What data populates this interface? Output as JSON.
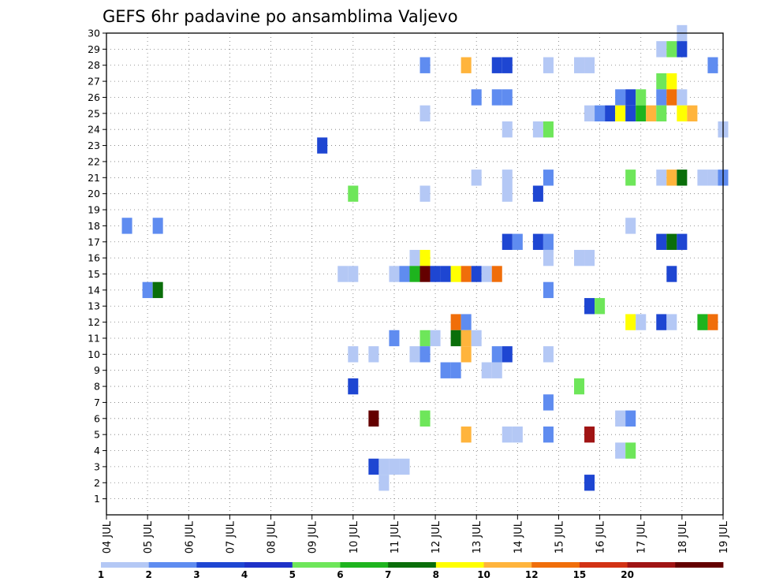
{
  "chart_data": {
    "type": "heatmap",
    "title": "GEFS 6hr padavine po ansamblima Valjevo",
    "xlabel": "",
    "ylabel": "",
    "x_tick_labels": [
      "04 JUL",
      "05 JUL",
      "06 JUL",
      "07 JUL",
      "08 JUL",
      "09 JUL",
      "10 JUL",
      "11 JUL",
      "12 JUL",
      "13 JUL",
      "14 JUL",
      "15 JUL",
      "16 JUL",
      "17 JUL",
      "18 JUL",
      "19 JUL"
    ],
    "xlim": [
      0,
      15
    ],
    "x_unit": "days after 04 JUL 00z (6-hour steps)",
    "y_tick_labels": [
      "1",
      "2",
      "3",
      "4",
      "5",
      "6",
      "7",
      "8",
      "9",
      "10",
      "11",
      "12",
      "13",
      "14",
      "15",
      "16",
      "17",
      "18",
      "19",
      "20",
      "21",
      "22",
      "23",
      "24",
      "25",
      "26",
      "27",
      "28",
      "29",
      "30"
    ],
    "ylim": [
      0,
      30
    ],
    "grid": true,
    "legend": "colorbar-bottom",
    "colorbar": {
      "tick_labels": [
        "1",
        "2",
        "3",
        "4",
        "5",
        "6",
        "7",
        "8",
        "10",
        "12",
        "15",
        "20"
      ],
      "colors": [
        "#b4c8f5",
        "#5f8cf0",
        "#1e46d2",
        "#1e32c8",
        "#6ee65a",
        "#1eb41e",
        "#0a6e0a",
        "#ffff00",
        "#ffb43c",
        "#f06e0a",
        "#d23214",
        "#a01414",
        "#640000"
      ]
    },
    "cell_days": 0.25,
    "cells": [
      [
        14.0,
        30,
        "#b4c8f5"
      ],
      [
        13.5,
        29,
        "#b4c8f5"
      ],
      [
        13.75,
        29,
        "#6ee65a"
      ],
      [
        14.0,
        29,
        "#1e46d2"
      ],
      [
        7.75,
        28,
        "#5f8cf0"
      ],
      [
        8.75,
        28,
        "#ffb43c"
      ],
      [
        9.5,
        28,
        "#1e46d2"
      ],
      [
        9.75,
        28,
        "#1e46d2"
      ],
      [
        10.75,
        28,
        "#b4c8f5"
      ],
      [
        11.5,
        28,
        "#b4c8f5"
      ],
      [
        11.75,
        28,
        "#b4c8f5"
      ],
      [
        14.75,
        28,
        "#5f8cf0"
      ],
      [
        13.5,
        27,
        "#6ee65a"
      ],
      [
        13.75,
        27,
        "#ffff00"
      ],
      [
        9.0,
        26,
        "#5f8cf0"
      ],
      [
        9.5,
        26,
        "#5f8cf0"
      ],
      [
        9.75,
        26,
        "#5f8cf0"
      ],
      [
        12.5,
        26,
        "#5f8cf0"
      ],
      [
        12.75,
        26,
        "#1e46d2"
      ],
      [
        13.0,
        26,
        "#6ee65a"
      ],
      [
        13.5,
        26,
        "#5f8cf0"
      ],
      [
        13.75,
        26,
        "#f06e0a"
      ],
      [
        14.0,
        26,
        "#b4c8f5"
      ],
      [
        7.75,
        25,
        "#b4c8f5"
      ],
      [
        11.75,
        25,
        "#b4c8f5"
      ],
      [
        12.0,
        25,
        "#5f8cf0"
      ],
      [
        12.25,
        25,
        "#1e46d2"
      ],
      [
        12.5,
        25,
        "#ffff00"
      ],
      [
        12.75,
        25,
        "#1e46d2"
      ],
      [
        13.0,
        25,
        "#1eb41e"
      ],
      [
        13.25,
        25,
        "#ffb43c"
      ],
      [
        13.5,
        25,
        "#6ee65a"
      ],
      [
        14.0,
        25,
        "#ffff00"
      ],
      [
        14.25,
        25,
        "#ffb43c"
      ],
      [
        9.75,
        24,
        "#b4c8f5"
      ],
      [
        10.5,
        24,
        "#b4c8f5"
      ],
      [
        10.75,
        24,
        "#6ee65a"
      ],
      [
        15.0,
        24,
        "#b4c8f5"
      ],
      [
        5.25,
        23,
        "#1e46d2"
      ],
      [
        9.0,
        21,
        "#b4c8f5"
      ],
      [
        9.75,
        21,
        "#b4c8f5"
      ],
      [
        10.75,
        21,
        "#5f8cf0"
      ],
      [
        12.75,
        21,
        "#6ee65a"
      ],
      [
        13.5,
        21,
        "#b4c8f5"
      ],
      [
        13.75,
        21,
        "#ffb43c"
      ],
      [
        14.0,
        21,
        "#0a6e0a"
      ],
      [
        14.5,
        21,
        "#b4c8f5"
      ],
      [
        14.75,
        21,
        "#b4c8f5"
      ],
      [
        15.0,
        21,
        "#5f8cf0"
      ],
      [
        6.0,
        20,
        "#6ee65a"
      ],
      [
        7.75,
        20,
        "#b4c8f5"
      ],
      [
        9.75,
        20,
        "#b4c8f5"
      ],
      [
        10.5,
        20,
        "#1e46d2"
      ],
      [
        0.5,
        18,
        "#5f8cf0"
      ],
      [
        1.25,
        18,
        "#5f8cf0"
      ],
      [
        12.75,
        18,
        "#b4c8f5"
      ],
      [
        9.75,
        17,
        "#1e46d2"
      ],
      [
        10.0,
        17,
        "#5f8cf0"
      ],
      [
        10.5,
        17,
        "#1e46d2"
      ],
      [
        10.75,
        17,
        "#5f8cf0"
      ],
      [
        13.5,
        17,
        "#1e46d2"
      ],
      [
        13.75,
        17,
        "#0a6e0a"
      ],
      [
        14.0,
        17,
        "#1e46d2"
      ],
      [
        7.5,
        16,
        "#b4c8f5"
      ],
      [
        7.75,
        16,
        "#ffff00"
      ],
      [
        10.75,
        16,
        "#b4c8f5"
      ],
      [
        11.5,
        16,
        "#b4c8f5"
      ],
      [
        11.75,
        16,
        "#b4c8f5"
      ],
      [
        5.75,
        15,
        "#b4c8f5"
      ],
      [
        6.0,
        15,
        "#b4c8f5"
      ],
      [
        7.0,
        15,
        "#b4c8f5"
      ],
      [
        7.25,
        15,
        "#5f8cf0"
      ],
      [
        7.5,
        15,
        "#1eb41e"
      ],
      [
        7.75,
        15,
        "#640000"
      ],
      [
        8.0,
        15,
        "#1e46d2"
      ],
      [
        8.25,
        15,
        "#1e46d2"
      ],
      [
        8.5,
        15,
        "#ffff00"
      ],
      [
        8.75,
        15,
        "#f06e0a"
      ],
      [
        9.0,
        15,
        "#1e46d2"
      ],
      [
        9.25,
        15,
        "#b4c8f5"
      ],
      [
        9.5,
        15,
        "#f06e0a"
      ],
      [
        13.75,
        15,
        "#1e46d2"
      ],
      [
        1.0,
        14,
        "#5f8cf0"
      ],
      [
        1.25,
        14,
        "#0a6e0a"
      ],
      [
        10.75,
        14,
        "#5f8cf0"
      ],
      [
        11.75,
        13,
        "#1e46d2"
      ],
      [
        12.0,
        13,
        "#6ee65a"
      ],
      [
        8.5,
        12,
        "#f06e0a"
      ],
      [
        8.75,
        12,
        "#5f8cf0"
      ],
      [
        12.75,
        12,
        "#ffff00"
      ],
      [
        13.0,
        12,
        "#b4c8f5"
      ],
      [
        13.5,
        12,
        "#1e46d2"
      ],
      [
        13.75,
        12,
        "#b4c8f5"
      ],
      [
        14.5,
        12,
        "#1eb41e"
      ],
      [
        14.75,
        12,
        "#f06e0a"
      ],
      [
        7.0,
        11,
        "#5f8cf0"
      ],
      [
        7.75,
        11,
        "#6ee65a"
      ],
      [
        8.0,
        11,
        "#b4c8f5"
      ],
      [
        8.5,
        11,
        "#0a6e0a"
      ],
      [
        8.75,
        11,
        "#ffb43c"
      ],
      [
        9.0,
        11,
        "#b4c8f5"
      ],
      [
        6.0,
        10,
        "#b4c8f5"
      ],
      [
        6.5,
        10,
        "#b4c8f5"
      ],
      [
        7.5,
        10,
        "#b4c8f5"
      ],
      [
        7.75,
        10,
        "#5f8cf0"
      ],
      [
        8.75,
        10,
        "#ffb43c"
      ],
      [
        9.5,
        10,
        "#5f8cf0"
      ],
      [
        9.75,
        10,
        "#1e46d2"
      ],
      [
        10.75,
        10,
        "#b4c8f5"
      ],
      [
        8.25,
        9,
        "#5f8cf0"
      ],
      [
        8.5,
        9,
        "#5f8cf0"
      ],
      [
        9.25,
        9,
        "#b4c8f5"
      ],
      [
        9.5,
        9,
        "#b4c8f5"
      ],
      [
        6.0,
        8,
        "#1e46d2"
      ],
      [
        11.5,
        8,
        "#6ee65a"
      ],
      [
        10.75,
        7,
        "#5f8cf0"
      ],
      [
        6.5,
        6,
        "#640000"
      ],
      [
        7.75,
        6,
        "#6ee65a"
      ],
      [
        12.5,
        6,
        "#b4c8f5"
      ],
      [
        12.75,
        6,
        "#5f8cf0"
      ],
      [
        8.75,
        5,
        "#ffb43c"
      ],
      [
        9.75,
        5,
        "#b4c8f5"
      ],
      [
        10.0,
        5,
        "#b4c8f5"
      ],
      [
        10.75,
        5,
        "#5f8cf0"
      ],
      [
        11.75,
        5,
        "#a01414"
      ],
      [
        12.5,
        4,
        "#b4c8f5"
      ],
      [
        12.75,
        4,
        "#6ee65a"
      ],
      [
        6.5,
        3,
        "#1e46d2"
      ],
      [
        6.75,
        3,
        "#b4c8f5"
      ],
      [
        7.0,
        3,
        "#b4c8f5"
      ],
      [
        7.25,
        3,
        "#b4c8f5"
      ],
      [
        6.75,
        2,
        "#b4c8f5"
      ],
      [
        11.75,
        2,
        "#1e46d2"
      ]
    ]
  }
}
